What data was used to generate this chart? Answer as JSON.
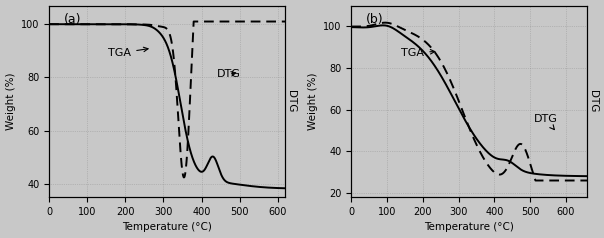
{
  "fig_width": 6.04,
  "fig_height": 2.38,
  "dpi": 100,
  "background_color": "#c8c8c8",
  "panel_a": {
    "label": "(a)",
    "xlabel": "Temperature (°C)",
    "ylabel_left": "Weight (%)",
    "ylabel_right": "DTG",
    "xlim": [
      0,
      620
    ],
    "ylim_left": [
      35,
      107
    ],
    "yticks_left": [
      40,
      60,
      80,
      100
    ],
    "xticks": [
      0,
      100,
      200,
      300,
      400,
      500,
      600
    ],
    "tga_label": "TGA",
    "dtg_label": "DTG"
  },
  "panel_b": {
    "label": "(b)",
    "xlabel": "Temperature (°C)",
    "ylabel_left": "Weight (%)",
    "ylabel_right": "DTG",
    "xlim": [
      0,
      660
    ],
    "ylim_left": [
      18,
      110
    ],
    "yticks_left": [
      20,
      40,
      60,
      80,
      100
    ],
    "xticks": [
      0,
      100,
      200,
      300,
      400,
      500,
      600
    ],
    "tga_label": "TGA",
    "dtg_label": "DTG"
  }
}
